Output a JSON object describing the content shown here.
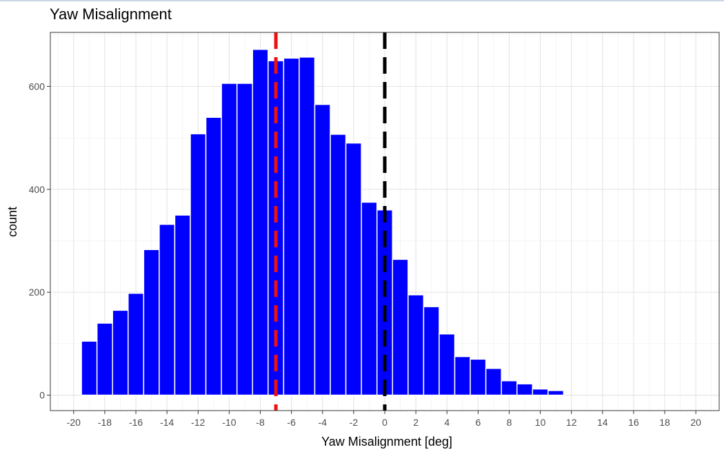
{
  "chart_data": {
    "type": "bar",
    "title": "Yaw Misalignment",
    "xlabel": "Yaw Misalignment [deg]",
    "ylabel": "count",
    "xlim": [
      -21.5,
      21.5
    ],
    "ylim": [
      -30,
      705
    ],
    "x_ticks": [
      -20,
      -18,
      -16,
      -14,
      -12,
      -10,
      -8,
      -6,
      -4,
      -2,
      0,
      2,
      4,
      6,
      8,
      10,
      12,
      14,
      16,
      18,
      20
    ],
    "y_ticks": [
      0,
      200,
      400,
      600
    ],
    "bin_width": 1,
    "x": [
      -19,
      -18,
      -17,
      -16,
      -15,
      -14,
      -13,
      -12,
      -11,
      -10,
      -9,
      -8,
      -7,
      -6,
      -5,
      -4,
      -3,
      -2,
      -1,
      0,
      1,
      2,
      3,
      4,
      5,
      6,
      7,
      8,
      9,
      10,
      11
    ],
    "values": [
      105,
      140,
      165,
      198,
      283,
      332,
      350,
      508,
      540,
      606,
      606,
      672,
      650,
      655,
      657,
      565,
      507,
      490,
      375,
      360,
      264,
      195,
      172,
      119,
      75,
      70,
      52,
      28,
      22,
      12,
      9
    ],
    "reference_lines": [
      {
        "x": -7,
        "color": "#ee1111",
        "style": "dashed"
      },
      {
        "x": 0,
        "color": "#000000",
        "style": "dashed"
      }
    ],
    "bar_color": "#0000ff",
    "grid": true,
    "legend": "none"
  }
}
